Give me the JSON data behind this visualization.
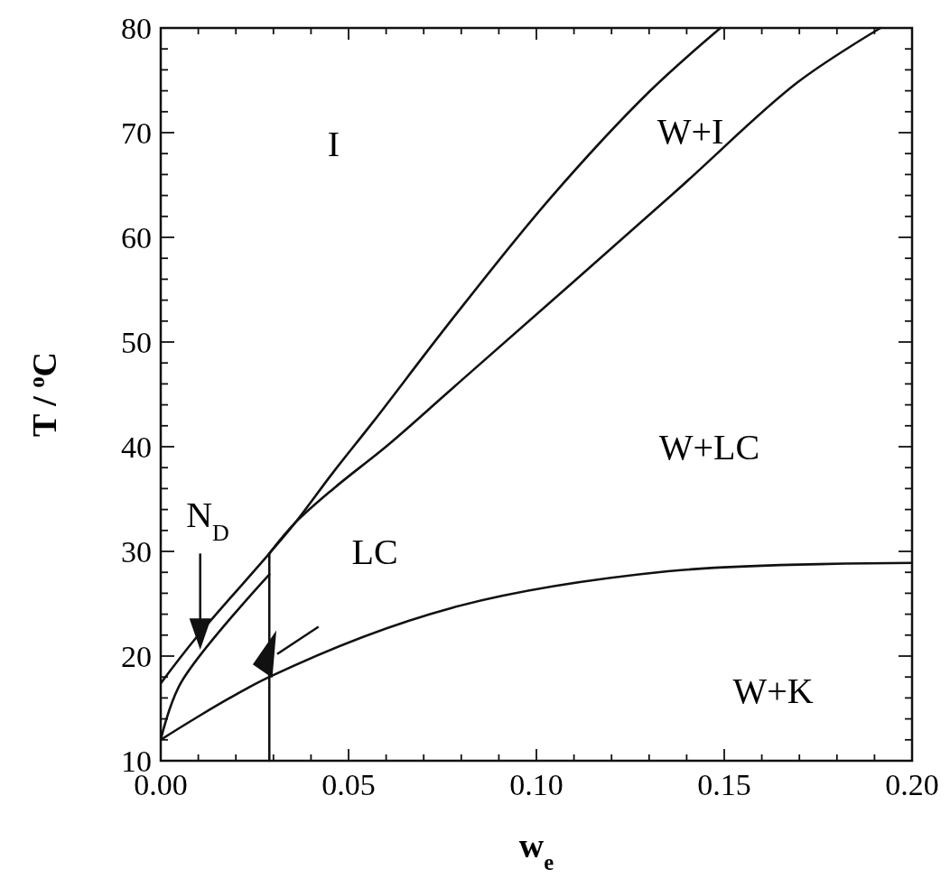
{
  "chart_data": {
    "type": "line",
    "xlabel": "w$_{e}$",
    "ylabel": "T / $^{o}$C",
    "xlim": [
      0,
      0.2
    ],
    "ylim": [
      10,
      80
    ],
    "xticks": [
      {
        "value": 0,
        "label": "0.00"
      },
      {
        "value": 0.01,
        "label": null
      },
      {
        "value": 0.02,
        "label": null
      },
      {
        "value": 0.03,
        "label": null
      },
      {
        "value": 0.04,
        "label": null
      },
      {
        "value": 0.05,
        "label": "0.05"
      },
      {
        "value": 0.06,
        "label": null
      },
      {
        "value": 0.07,
        "label": null
      },
      {
        "value": 0.08,
        "label": null
      },
      {
        "value": 0.09,
        "label": null
      },
      {
        "value": 0.1,
        "label": "0.10"
      },
      {
        "value": 0.11,
        "label": null
      },
      {
        "value": 0.12,
        "label": null
      },
      {
        "value": 0.13,
        "label": null
      },
      {
        "value": 0.14,
        "label": null
      },
      {
        "value": 0.15,
        "label": "0.15"
      },
      {
        "value": 0.16,
        "label": null
      },
      {
        "value": 0.17,
        "label": null
      },
      {
        "value": 0.18,
        "label": null
      },
      {
        "value": 0.19,
        "label": null
      },
      {
        "value": 0.2,
        "label": "0.20"
      }
    ],
    "yticks": [
      10,
      {
        "value": 12,
        "label": null
      },
      {
        "value": 14,
        "label": null
      },
      {
        "value": 16,
        "label": null
      },
      {
        "value": 18,
        "label": null
      },
      20,
      {
        "value": 22,
        "label": null
      },
      {
        "value": 24,
        "label": null
      },
      {
        "value": 26,
        "label": null
      },
      {
        "value": 28,
        "label": null
      },
      30,
      {
        "value": 32,
        "label": null
      },
      {
        "value": 34,
        "label": null
      },
      {
        "value": 36,
        "label": null
      },
      {
        "value": 38,
        "label": null
      },
      40,
      {
        "value": 42,
        "label": null
      },
      {
        "value": 44,
        "label": null
      },
      {
        "value": 46,
        "label": null
      },
      {
        "value": 48,
        "label": null
      },
      50,
      {
        "value": 52,
        "label": null
      },
      {
        "value": 54,
        "label": null
      },
      {
        "value": 56,
        "label": null
      },
      {
        "value": 58,
        "label": null
      },
      60,
      {
        "value": 62,
        "label": null
      },
      {
        "value": 64,
        "label": null
      },
      {
        "value": 66,
        "label": null
      },
      {
        "value": 68,
        "label": null
      },
      70,
      {
        "value": 72,
        "label": null
      },
      {
        "value": 74,
        "label": null
      },
      {
        "value": 76,
        "label": null
      },
      {
        "value": 78,
        "label": null
      },
      80
    ],
    "grid": false,
    "marker": "none",
    "line_style": "solid",
    "series": [
      {
        "color": "#111111",
        "x": [
          0,
          0.0093,
          0.0289,
          0.0357,
          0.046,
          0.0566,
          0.0774,
          0.1036,
          0.13,
          0.149
        ],
        "values": [
          17.4,
          21.7,
          29.8,
          32.7,
          37.6,
          42.4,
          52.1,
          63.7,
          73.9,
          80
        ]
      },
      {
        "color": "#111111",
        "x": [
          0.0289,
          0.0357,
          0.046,
          0.0606,
          0.0774,
          0.1365,
          0.1695,
          0.1916
        ],
        "values": [
          29.8,
          32.7,
          36.0,
          40.2,
          45.5,
          64.2,
          74.8,
          80
        ]
      },
      {
        "color": "#111111",
        "x": [
          0,
          0.0053,
          0.0289
        ],
        "values": [
          12.0,
          17.4,
          27.8
        ]
      },
      {
        "color": "#111111",
        "x": [
          0,
          0.0289,
          0.0774,
          0.135,
          0.2
        ],
        "values": [
          12.0,
          18.0,
          24.6,
          28.1,
          28.9
        ]
      },
      {
        "color": "#111111",
        "x": [
          0.0289,
          0.0289
        ],
        "values": [
          29.8,
          10
        ]
      }
    ],
    "annotations": [
      "I",
      "W+I",
      "W+LC",
      "W+K",
      "N$_{D}$",
      "LC"
    ]
  }
}
